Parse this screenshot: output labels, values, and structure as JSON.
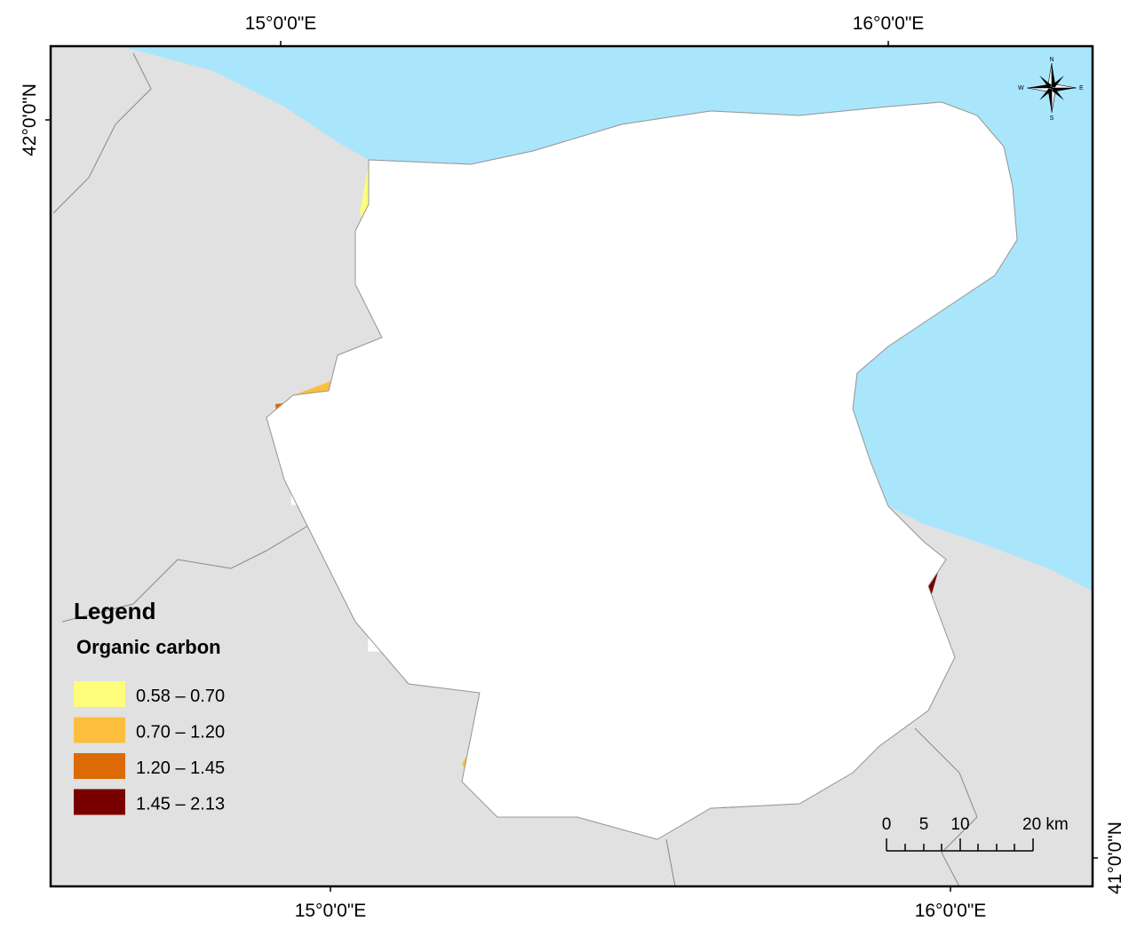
{
  "axes": {
    "top": [
      "15°0'0\"E",
      "16°0'0\"E"
    ],
    "bottom": [
      "15°0'0\"E",
      "16°0'0\"E"
    ],
    "left": [
      "42°0'0\"N"
    ],
    "right": [
      "41°0'0\"N"
    ]
  },
  "compass": {
    "n": "N",
    "s": "S",
    "e": "E",
    "w": "W",
    "icon": "north-arrow-compass-rose"
  },
  "legend": {
    "title": "Legend",
    "subtitle": "Organic carbon",
    "classes": [
      {
        "label": "0.58 – 0.70",
        "color": "#fefc7b"
      },
      {
        "label": "0.70 – 1.20",
        "color": "#fdbe3e"
      },
      {
        "label": "1.20 – 1.45",
        "color": "#dc6a05"
      },
      {
        "label": "1.45 – 2.13",
        "color": "#7a0000"
      }
    ]
  },
  "scalebar": {
    "ticks": [
      "0",
      "5",
      "10",
      "20 km"
    ]
  },
  "colors": {
    "sea": "#aae6fb",
    "land": "#e1e1e1",
    "nodata": "#ffffff"
  }
}
